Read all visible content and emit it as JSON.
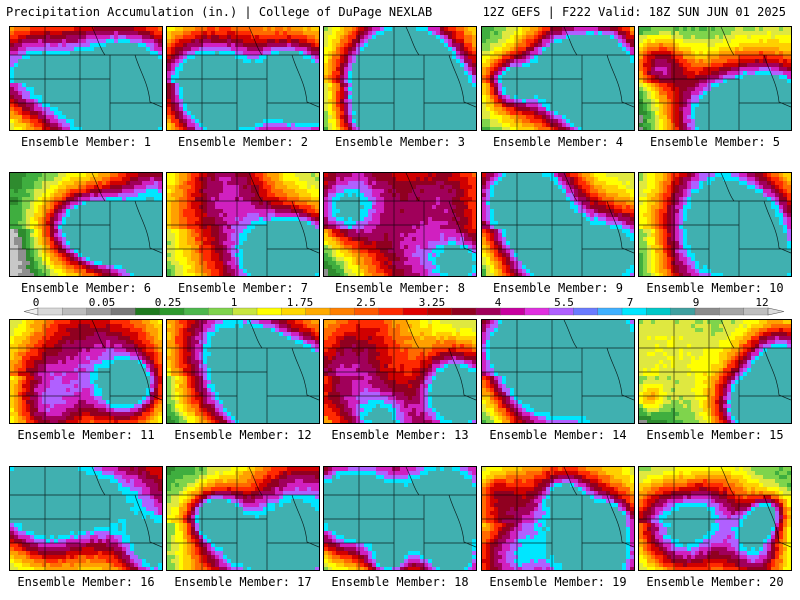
{
  "header": {
    "title": "Precipitation Accumulation (in.) | College of DuPage NEXLAB",
    "run_info": "12Z GEFS | F222 Valid: 18Z SUN JUN 01 2025"
  },
  "colorbar": {
    "tick_labels": [
      "0",
      "0.05",
      "0.25",
      "1",
      "1.75",
      "2.5",
      "3.25",
      "4",
      "5.5",
      "7",
      "9",
      "12"
    ],
    "colors": [
      "#d9d9d9",
      "#bdbdbd",
      "#9e9e9e",
      "#7a7a7a",
      "#1f7a1f",
      "#2e9a2e",
      "#4cb84c",
      "#7fd44c",
      "#c8e640",
      "#ffff00",
      "#ffd700",
      "#ffaa00",
      "#ff8000",
      "#ff5a00",
      "#ff2a00",
      "#e00000",
      "#b80000",
      "#900020",
      "#a0005a",
      "#c800a0",
      "#e030e0",
      "#b060ff",
      "#6a7bff",
      "#40b0ff",
      "#00e6ff",
      "#00c8c8",
      "#40a0a0",
      "#8c8c8c",
      "#a6a6a6",
      "#bfbfbf"
    ]
  },
  "panels": [
    {
      "label": "Ensemble Member: 1"
    },
    {
      "label": "Ensemble Member: 2"
    },
    {
      "label": "Ensemble Member: 3"
    },
    {
      "label": "Ensemble Member: 4"
    },
    {
      "label": "Ensemble Member: 5"
    },
    {
      "label": "Ensemble Member: 6"
    },
    {
      "label": "Ensemble Member: 7"
    },
    {
      "label": "Ensemble Member: 8"
    },
    {
      "label": "Ensemble Member: 9"
    },
    {
      "label": "Ensemble Member: 10"
    },
    {
      "label": "Ensemble Member: 11"
    },
    {
      "label": "Ensemble Member: 12"
    },
    {
      "label": "Ensemble Member: 13"
    },
    {
      "label": "Ensemble Member: 14"
    },
    {
      "label": "Ensemble Member: 15"
    },
    {
      "label": "Ensemble Member: 16"
    },
    {
      "label": "Ensemble Member: 17"
    },
    {
      "label": "Ensemble Member: 18"
    },
    {
      "label": "Ensemble Member: 19"
    },
    {
      "label": "Ensemble Member: 20"
    }
  ]
}
